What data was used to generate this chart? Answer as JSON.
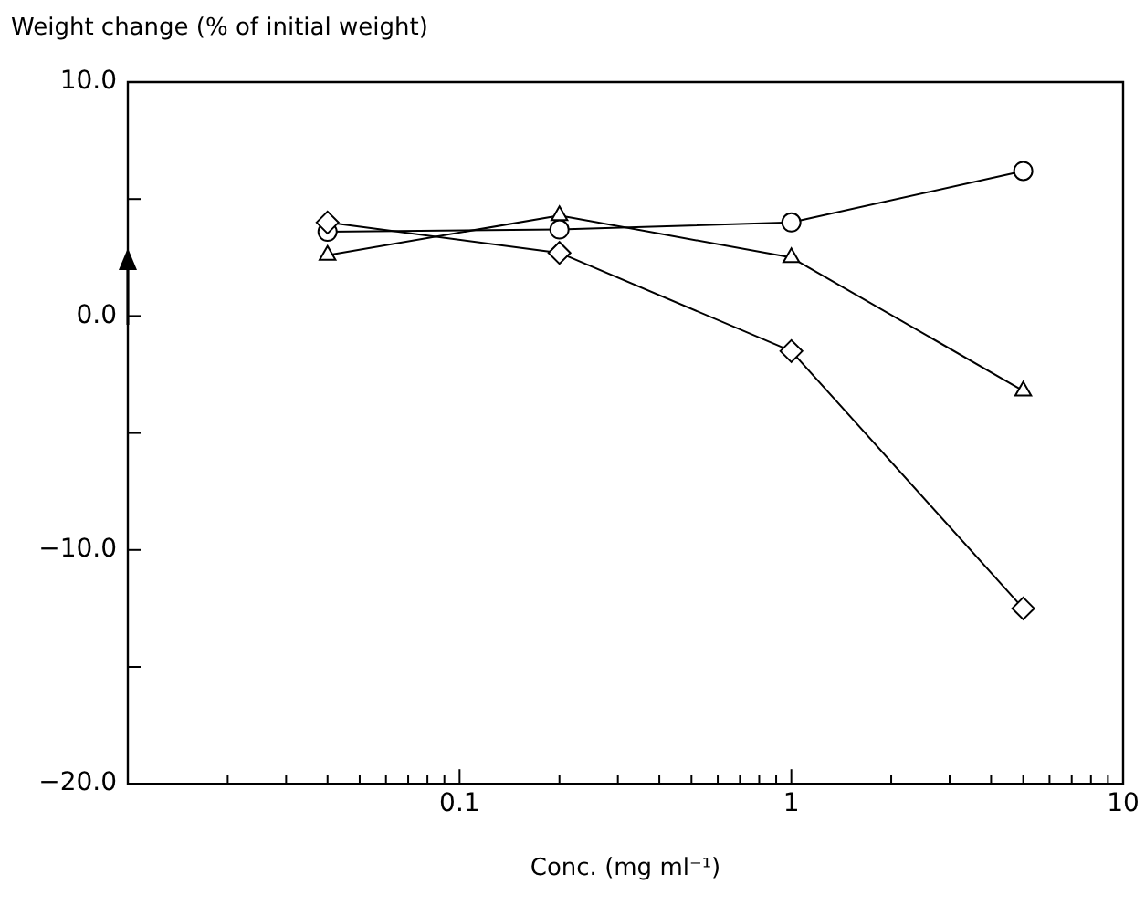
{
  "chart_data": {
    "type": "line",
    "ylabel": "Weight change (% of initial weight)",
    "xlabel": "Conc. (mg ml⁻¹)",
    "log": "x",
    "x": [
      0.04,
      0.2,
      1,
      5
    ],
    "series": [
      {
        "color": "#000000",
        "marker": "circle",
        "values": [
          3.6,
          3.7,
          4.0,
          6.2
        ]
      },
      {
        "color": "#000000",
        "marker": "triangle",
        "values": [
          2.6,
          4.3,
          2.5,
          -3.2
        ]
      },
      {
        "color": "#000000",
        "marker": "diamond",
        "values": [
          4.0,
          2.7,
          -1.5,
          -12.5
        ]
      }
    ],
    "xlim": [
      0.01,
      10
    ],
    "xticks": [
      {
        "value": 0.02,
        "label": null
      },
      {
        "value": 0.03,
        "label": null
      },
      {
        "value": 0.04,
        "label": null
      },
      {
        "value": 0.05,
        "label": null
      },
      {
        "value": 0.06,
        "label": null
      },
      {
        "value": 0.07,
        "label": null
      },
      {
        "value": 0.08,
        "label": null
      },
      {
        "value": 0.09,
        "label": null
      },
      0.1,
      {
        "value": 0.2,
        "label": null
      },
      {
        "value": 0.3,
        "label": null
      },
      {
        "value": 0.4,
        "label": null
      },
      {
        "value": 0.5,
        "label": null
      },
      {
        "value": 0.6,
        "label": null
      },
      {
        "value": 0.7,
        "label": null
      },
      {
        "value": 0.8,
        "label": null
      },
      {
        "value": 0.9,
        "label": null
      },
      1,
      {
        "value": 2,
        "label": null
      },
      {
        "value": 3,
        "label": null
      },
      {
        "value": 4,
        "label": null
      },
      {
        "value": 5,
        "label": null
      },
      {
        "value": 6,
        "label": null
      },
      {
        "value": 7,
        "label": null
      },
      {
        "value": 8,
        "label": null
      },
      {
        "value": 9,
        "label": null
      },
      10
    ],
    "ylim": [
      -20,
      10
    ],
    "yticks": [
      {
        "value": -20,
        "label": "−20.0"
      },
      {
        "value": -15,
        "label": null
      },
      {
        "value": -10,
        "label": "−10.0"
      },
      {
        "value": -5,
        "label": null
      },
      {
        "value": 0,
        "label": "0.0"
      },
      {
        "value": 5,
        "label": null
      },
      {
        "value": 10,
        "label": "10.0"
      }
    ],
    "grid": false,
    "legend": false,
    "line_style": "solid"
  }
}
